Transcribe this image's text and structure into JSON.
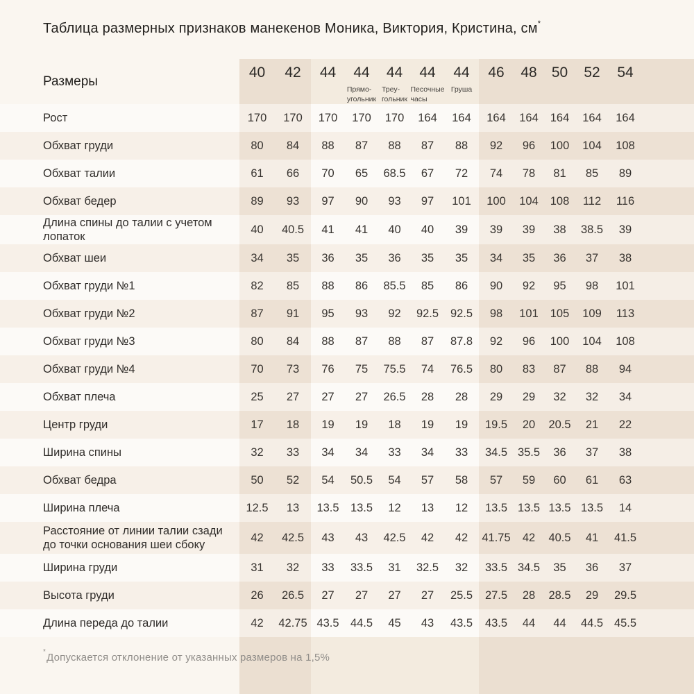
{
  "title": "Таблица размерных признаков манекенов Моника, Виктория, Кристина, см",
  "title_mark": "*",
  "header_label": "Размеры",
  "footnote_mark": "*",
  "footnote_text": "Допускается отклонение от указанных размеров на 1,5%",
  "chart_data": {
    "type": "table",
    "columns": [
      {
        "size": "40",
        "subtitle": ""
      },
      {
        "size": "42",
        "subtitle": ""
      },
      {
        "size": "44",
        "subtitle": ""
      },
      {
        "size": "44",
        "subtitle": "Прямо-\nугольник"
      },
      {
        "size": "44",
        "subtitle": "Треу-\nгольник"
      },
      {
        "size": "44",
        "subtitle": "Песочные\nчасы"
      },
      {
        "size": "44",
        "subtitle": "Груша"
      },
      {
        "size": "46",
        "subtitle": ""
      },
      {
        "size": "48",
        "subtitle": ""
      },
      {
        "size": "50",
        "subtitle": ""
      },
      {
        "size": "52",
        "subtitle": ""
      },
      {
        "size": "54",
        "subtitle": ""
      }
    ],
    "rows": [
      {
        "label": "Рост",
        "values": [
          "170",
          "170",
          "170",
          "170",
          "170",
          "164",
          "164",
          "164",
          "164",
          "164",
          "164",
          "164"
        ]
      },
      {
        "label": "Обхват груди",
        "values": [
          "80",
          "84",
          "88",
          "87",
          "88",
          "87",
          "88",
          "92",
          "96",
          "100",
          "104",
          "108"
        ]
      },
      {
        "label": "Обхват талии",
        "values": [
          "61",
          "66",
          "70",
          "65",
          "68.5",
          "67",
          "72",
          "74",
          "78",
          "81",
          "85",
          "89"
        ]
      },
      {
        "label": "Обхват бедер",
        "values": [
          "89",
          "93",
          "97",
          "90",
          "93",
          "97",
          "101",
          "100",
          "104",
          "108",
          "112",
          "116"
        ]
      },
      {
        "label": "Длина спины до талии с учетом лопаток",
        "values": [
          "40",
          "40.5",
          "41",
          "41",
          "40",
          "40",
          "39",
          "39",
          "39",
          "38",
          "38.5",
          "39"
        ]
      },
      {
        "label": "Обхват шеи",
        "values": [
          "34",
          "35",
          "36",
          "35",
          "36",
          "35",
          "35",
          "34",
          "35",
          "36",
          "37",
          "38"
        ]
      },
      {
        "label": "Обхват груди №1",
        "values": [
          "82",
          "85",
          "88",
          "86",
          "85.5",
          "85",
          "86",
          "90",
          "92",
          "95",
          "98",
          "101"
        ]
      },
      {
        "label": "Обхват груди №2",
        "values": [
          "87",
          "91",
          "95",
          "93",
          "92",
          "92.5",
          "92.5",
          "98",
          "101",
          "105",
          "109",
          "113"
        ]
      },
      {
        "label": "Обхват груди №3",
        "values": [
          "80",
          "84",
          "88",
          "87",
          "88",
          "87",
          "87.8",
          "92",
          "96",
          "100",
          "104",
          "108"
        ]
      },
      {
        "label": "Обхват груди №4",
        "values": [
          "70",
          "73",
          "76",
          "75",
          "75.5",
          "74",
          "76.5",
          "80",
          "83",
          "87",
          "88",
          "94"
        ]
      },
      {
        "label": "Обхват плеча",
        "values": [
          "25",
          "27",
          "27",
          "27",
          "26.5",
          "28",
          "28",
          "29",
          "29",
          "32",
          "32",
          "34"
        ]
      },
      {
        "label": "Центр груди",
        "values": [
          "17",
          "18",
          "19",
          "19",
          "18",
          "19",
          "19",
          "19.5",
          "20",
          "20.5",
          "21",
          "22"
        ]
      },
      {
        "label": "Ширина спины",
        "values": [
          "32",
          "33",
          "34",
          "34",
          "33",
          "34",
          "33",
          "34.5",
          "35.5",
          "36",
          "37",
          "38"
        ]
      },
      {
        "label": "Обхват бедра",
        "values": [
          "50",
          "52",
          "54",
          "50.5",
          "54",
          "57",
          "58",
          "57",
          "59",
          "60",
          "61",
          "63"
        ]
      },
      {
        "label": "Ширина плеча",
        "values": [
          "12.5",
          "13",
          "13.5",
          "13.5",
          "12",
          "13",
          "12",
          "13.5",
          "13.5",
          "13.5",
          "13.5",
          "14"
        ]
      },
      {
        "label": "Расстояние от линии талии сзади до точки основания шеи сбоку",
        "values": [
          "42",
          "42.5",
          "43",
          "43",
          "42.5",
          "42",
          "42",
          "41.75",
          "42",
          "40.5",
          "41",
          "41.5"
        ]
      },
      {
        "label": "Ширина груди",
        "values": [
          "31",
          "32",
          "33",
          "33.5",
          "31",
          "32.5",
          "32",
          "33.5",
          "34.5",
          "35",
          "36",
          "37"
        ]
      },
      {
        "label": "Высота груди",
        "values": [
          "26",
          "26.5",
          "27",
          "27",
          "27",
          "27",
          "25.5",
          "27.5",
          "28",
          "28.5",
          "29",
          "29.5"
        ]
      },
      {
        "label": "Длина переда до талии",
        "values": [
          "42",
          "42.75",
          "43.5",
          "44.5",
          "45",
          "43",
          "43.5",
          "43.5",
          "44",
          "44",
          "44.5",
          "45.5"
        ]
      }
    ]
  },
  "colors": {
    "page_background": "#faf6f0",
    "row_white": "#fcfaf7",
    "row_beige": "#f7f0e8",
    "band_over_white": "#f5eee6",
    "band_over_beige": "#ede1d4",
    "header_strip": "#f3ebdf",
    "header_strip_band": "#ebdfd1",
    "text_dark": "#2f2c29",
    "footnote_gray": "#908d89"
  }
}
